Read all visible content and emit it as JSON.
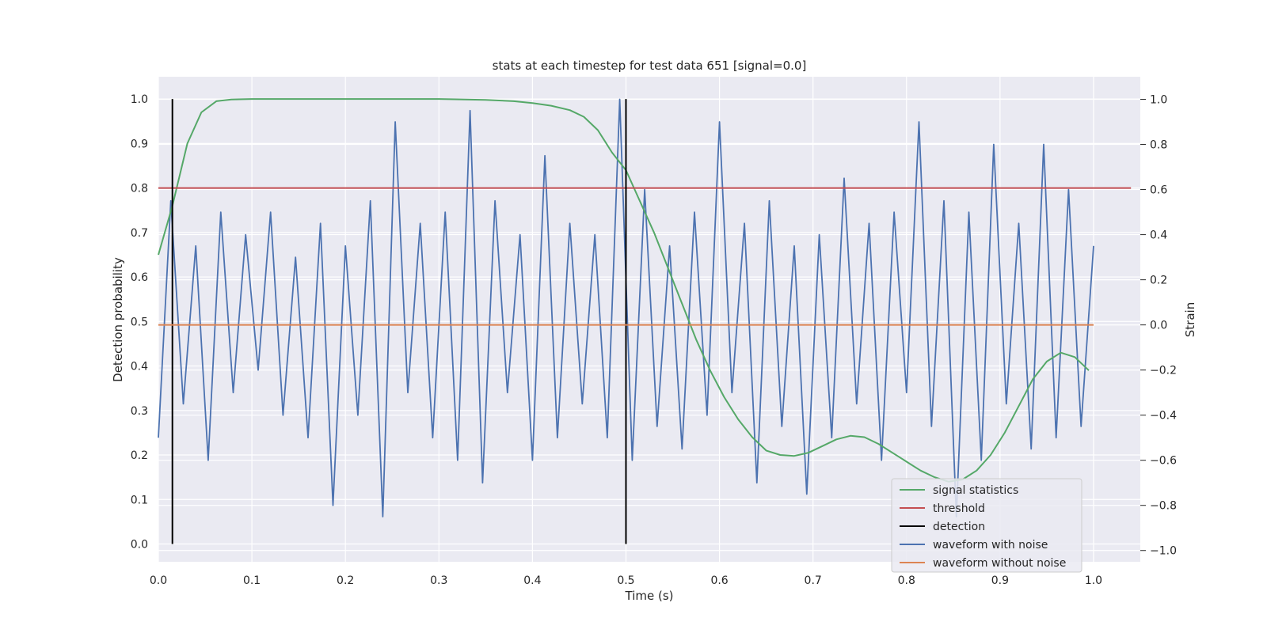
{
  "chart_data": {
    "type": "line",
    "title": "stats at each timestep for test data 651 [signal=0.0]",
    "xlabel": "Time (s)",
    "ylabel": "Detection probability",
    "y2label": "Strain",
    "xlim": [
      0.0,
      1.05
    ],
    "ylim": [
      -0.04,
      1.05
    ],
    "y2lim": [
      -1.05,
      1.1
    ],
    "x_ticks": [
      0.0,
      0.1,
      0.2,
      0.3,
      0.4,
      0.5,
      0.6,
      0.7,
      0.8,
      0.9,
      1.0
    ],
    "x_tick_labels": [
      "0.0",
      "0.1",
      "0.2",
      "0.3",
      "0.4",
      "0.5",
      "0.6",
      "0.7",
      "0.8",
      "0.9",
      "1.0"
    ],
    "y_ticks": [
      0.0,
      0.1,
      0.2,
      0.3,
      0.4,
      0.5,
      0.6,
      0.7,
      0.8,
      0.9,
      1.0
    ],
    "y_tick_labels": [
      "0.0",
      "0.1",
      "0.2",
      "0.3",
      "0.4",
      "0.5",
      "0.6",
      "0.7",
      "0.8",
      "0.9",
      "1.0"
    ],
    "y2_ticks": [
      -1.0,
      -0.8,
      -0.6,
      -0.4,
      -0.2,
      0.0,
      0.2,
      0.4,
      0.6,
      0.8,
      1.0
    ],
    "y2_tick_labels": [
      "−1.0",
      "−0.8",
      "−0.6",
      "−0.4",
      "−0.2",
      "0.0",
      "0.2",
      "0.4",
      "0.6",
      "0.8",
      "1.0"
    ],
    "grid": true,
    "legend_position": "bottom-right",
    "series": [
      {
        "name": "signal statistics",
        "axis": "left",
        "color": "#55a868",
        "x": [
          0.0,
          0.015,
          0.031,
          0.046,
          0.062,
          0.078,
          0.1,
          0.2,
          0.3,
          0.35,
          0.38,
          0.4,
          0.42,
          0.44,
          0.455,
          0.47,
          0.485,
          0.5,
          0.515,
          0.53,
          0.545,
          0.56,
          0.575,
          0.59,
          0.605,
          0.62,
          0.635,
          0.65,
          0.665,
          0.68,
          0.695,
          0.71,
          0.725,
          0.74,
          0.755,
          0.77,
          0.785,
          0.8,
          0.815,
          0.83,
          0.845,
          0.86,
          0.875,
          0.89,
          0.905,
          0.92,
          0.935,
          0.95,
          0.965,
          0.98,
          0.995
        ],
        "values": [
          0.65,
          0.76,
          0.9,
          0.97,
          0.995,
          0.999,
          1.0,
          1.0,
          1.0,
          0.998,
          0.995,
          0.991,
          0.985,
          0.975,
          0.96,
          0.93,
          0.88,
          0.84,
          0.77,
          0.7,
          0.62,
          0.54,
          0.46,
          0.39,
          0.33,
          0.28,
          0.24,
          0.21,
          0.2,
          0.198,
          0.205,
          0.22,
          0.235,
          0.243,
          0.24,
          0.225,
          0.205,
          0.185,
          0.165,
          0.15,
          0.14,
          0.145,
          0.165,
          0.2,
          0.25,
          0.31,
          0.37,
          0.41,
          0.43,
          0.42,
          0.39
        ]
      },
      {
        "name": "threshold",
        "axis": "left",
        "color": "#c44e52",
        "x": [
          0.0,
          1.04
        ],
        "values": [
          0.8,
          0.8
        ]
      },
      {
        "name": "detection",
        "axis": "left",
        "color": "#000000",
        "segments": [
          {
            "x": 0.015,
            "y": [
              0.0,
              1.0
            ]
          },
          {
            "x": 0.5,
            "y": [
              0.0,
              1.0
            ]
          }
        ]
      },
      {
        "name": "waveform with noise",
        "axis": "right",
        "color": "#4c72b0",
        "x": [
          0.0,
          0.0133,
          0.0267,
          0.04,
          0.0533,
          0.0667,
          0.08,
          0.0933,
          0.1067,
          0.12,
          0.1333,
          0.1467,
          0.16,
          0.1733,
          0.1867,
          0.2,
          0.2133,
          0.2267,
          0.24,
          0.2533,
          0.2667,
          0.28,
          0.2933,
          0.3067,
          0.32,
          0.3333,
          0.3467,
          0.36,
          0.3733,
          0.3867,
          0.4,
          0.4133,
          0.4267,
          0.44,
          0.4533,
          0.4667,
          0.48,
          0.4933,
          0.5067,
          0.52,
          0.5333,
          0.5467,
          0.56,
          0.5733,
          0.5867,
          0.6,
          0.6133,
          0.6267,
          0.64,
          0.6533,
          0.6667,
          0.68,
          0.6933,
          0.7067,
          0.72,
          0.7333,
          0.7467,
          0.76,
          0.7733,
          0.7867,
          0.8,
          0.8133,
          0.8267,
          0.84,
          0.8533,
          0.8667,
          0.88,
          0.8933,
          0.9067,
          0.92,
          0.9333,
          0.9467,
          0.96,
          0.9733,
          0.9867,
          1.0
        ],
        "values": [
          -0.5,
          0.55,
          -0.35,
          0.35,
          -0.6,
          0.5,
          -0.3,
          0.4,
          -0.2,
          0.5,
          -0.4,
          0.3,
          -0.5,
          0.45,
          -0.8,
          0.35,
          -0.4,
          0.55,
          -0.85,
          0.9,
          -0.3,
          0.45,
          -0.5,
          0.5,
          -0.6,
          0.95,
          -0.7,
          0.55,
          -0.3,
          0.4,
          -0.6,
          0.75,
          -0.5,
          0.45,
          -0.35,
          0.4,
          -0.5,
          1.0,
          -0.6,
          0.6,
          -0.45,
          0.35,
          -0.55,
          0.5,
          -0.4,
          0.9,
          -0.3,
          0.45,
          -0.7,
          0.55,
          -0.45,
          0.35,
          -0.75,
          0.4,
          -0.5,
          0.65,
          -0.35,
          0.45,
          -0.6,
          0.5,
          -0.3,
          0.9,
          -0.45,
          0.55,
          -0.85,
          0.5,
          -0.6,
          0.8,
          -0.35,
          0.45,
          -0.55,
          0.8,
          -0.5,
          0.6,
          -0.45,
          0.35
        ]
      },
      {
        "name": "waveform without noise",
        "axis": "right",
        "color": "#dd8452",
        "x": [
          0.0,
          1.0
        ],
        "values": [
          0.0,
          0.0
        ]
      }
    ]
  }
}
